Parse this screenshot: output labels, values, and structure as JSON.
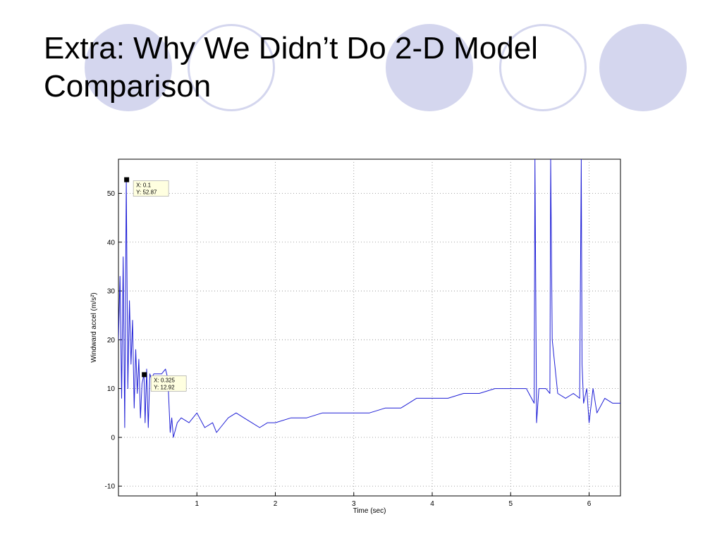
{
  "slide": {
    "title_line1": "Extra: Why We Didn’t Do 2-D Model",
    "title_line2": "Comparison",
    "accent_color": "#d4d6ee"
  },
  "chart_data": {
    "type": "line",
    "xlabel": "Time (sec)",
    "ylabel": "Windward accel (m/s²)",
    "xlim": [
      0,
      6.4
    ],
    "ylim": [
      -12,
      57
    ],
    "xticks": [
      1,
      2,
      3,
      4,
      5,
      6
    ],
    "yticks": [
      -10,
      0,
      10,
      20,
      30,
      40,
      50
    ],
    "grid": true,
    "line_color": "#1f1fd6",
    "series": [
      {
        "x": [
          0.0,
          0.02,
          0.04,
          0.06,
          0.08,
          0.1,
          0.12,
          0.14,
          0.16,
          0.18,
          0.2,
          0.22,
          0.24,
          0.26,
          0.28,
          0.3,
          0.325,
          0.34,
          0.36,
          0.38,
          0.4,
          0.42,
          0.45,
          0.5,
          0.55,
          0.6,
          0.63,
          0.66,
          0.68,
          0.7,
          0.75,
          0.8,
          0.9,
          1.0,
          1.1,
          1.2,
          1.25,
          1.3,
          1.4,
          1.5,
          1.6,
          1.7,
          1.8,
          1.9,
          2.0,
          2.2,
          2.4,
          2.6,
          2.8,
          3.0,
          3.2,
          3.4,
          3.6,
          3.7,
          3.8,
          3.9,
          4.0,
          4.2,
          4.4,
          4.6,
          4.8,
          5.0,
          5.2,
          5.3,
          5.31,
          5.33,
          5.36,
          5.45,
          5.5,
          5.51,
          5.53,
          5.6,
          5.7,
          5.8,
          5.88,
          5.9,
          5.91,
          5.93,
          5.97,
          6.0,
          6.05,
          6.1,
          6.2,
          6.3,
          6.4
        ],
        "y": [
          20,
          33,
          8,
          37,
          2,
          52.87,
          10,
          28,
          15,
          24,
          6,
          18,
          9,
          16,
          4,
          11,
          12.92,
          3,
          14,
          2,
          13,
          12,
          13,
          13,
          13,
          14,
          12,
          1,
          4,
          0,
          3,
          4,
          3,
          5,
          2,
          3,
          1,
          2,
          4,
          5,
          4,
          3,
          2,
          3,
          3,
          4,
          4,
          5,
          5,
          5,
          5,
          6,
          6,
          7,
          8,
          8,
          8,
          8,
          9,
          9,
          10,
          10,
          10,
          7,
          57,
          3,
          10,
          10,
          9,
          57,
          20,
          9,
          8,
          9,
          8,
          57,
          15,
          7,
          10,
          3,
          10,
          5,
          8,
          7,
          7
        ]
      }
    ],
    "annotations": [
      {
        "label_x": "X: 0.1",
        "label_y": "Y: 52.87",
        "x": 0.1,
        "y": 52.87
      },
      {
        "label_x": "X: 0.325",
        "label_y": "Y: 12.92",
        "x": 0.325,
        "y": 12.92
      }
    ]
  }
}
